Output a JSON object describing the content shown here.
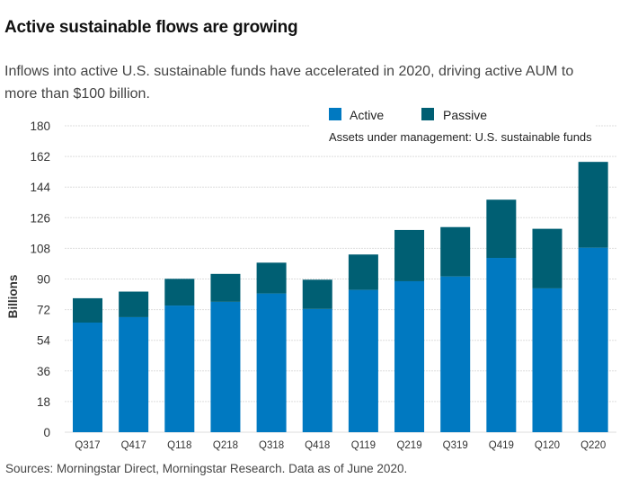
{
  "header": {
    "title": "Active sustainable flows are growing",
    "subtitle": "Inflows into active U.S. sustainable funds have accelerated in 2020, driving active AUM to more than $100 billion."
  },
  "footer": {
    "source": "Sources: Morningstar Direct, Morningstar Research. Data as of June 2020."
  },
  "colors": {
    "active": "#0079c1",
    "passive": "#005f73",
    "grid": "#dddddd"
  },
  "chart_data": {
    "type": "bar",
    "stacked": true,
    "title": "Active sustainable flows are growing",
    "subtitle": "Assets under management: U.S. sustainable funds",
    "xlabel": "",
    "ylabel": "Billions",
    "ylim": [
      0,
      180
    ],
    "yticks": [
      0,
      18,
      36,
      54,
      72,
      90,
      108,
      126,
      144,
      162,
      180
    ],
    "grid": true,
    "legend_position": "top-right",
    "categories": [
      "Q317",
      "Q417",
      "Q118",
      "Q218",
      "Q318",
      "Q418",
      "Q119",
      "Q219",
      "Q319",
      "Q419",
      "Q120",
      "Q220"
    ],
    "series": [
      {
        "name": "Active",
        "values": [
          64.4,
          67.6,
          74.4,
          76.6,
          81.5,
          72.4,
          83.6,
          88.7,
          91.5,
          102.4,
          84.5,
          108.4
        ]
      },
      {
        "name": "Passive",
        "values": [
          14.3,
          15.0,
          15.7,
          16.4,
          18.1,
          17.2,
          20.8,
          30.1,
          29.0,
          34.2,
          35.0,
          50.4
        ]
      }
    ]
  }
}
